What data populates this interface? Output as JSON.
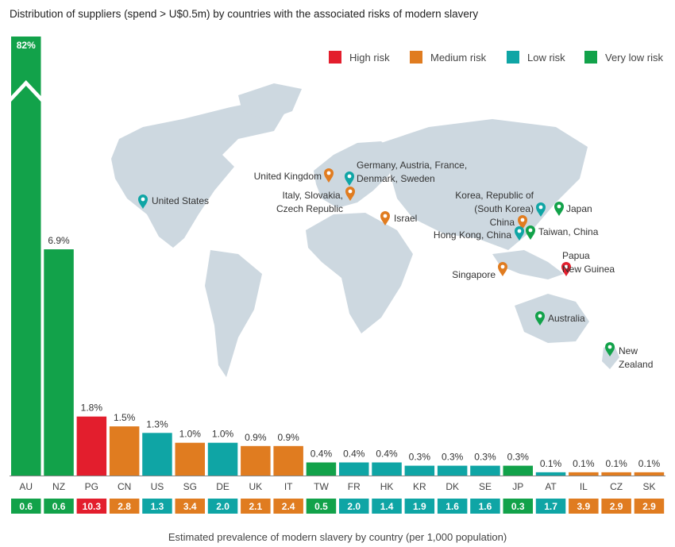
{
  "title": "Distribution of suppliers (spend > U$0.5m) by countries with the associated risks of modern slavery",
  "footer": "Estimated prevalence of modern slavery by country (per 1,000 population)",
  "colors": {
    "high": "#e31e2d",
    "medium": "#e07c20",
    "low": "#0fa5a5",
    "very_low": "#12a24a",
    "land": "#cdd8e0"
  },
  "legend": [
    {
      "key": "high",
      "label": "High risk"
    },
    {
      "key": "medium",
      "label": "Medium risk"
    },
    {
      "key": "low",
      "label": "Low risk"
    },
    {
      "key": "very_low",
      "label": "Very low risk"
    }
  ],
  "map_labels": [
    {
      "text": "United States",
      "risk": "low"
    },
    {
      "text": "United Kingdom",
      "risk": "medium"
    },
    {
      "text": "Germany, Austria, France,",
      "risk": "low"
    },
    {
      "text": "Denmark, Sweden",
      "risk": null
    },
    {
      "text": "Italy, Slovakia,",
      "risk": "medium"
    },
    {
      "text": "Czech Republic",
      "risk": null
    },
    {
      "text": "Israel",
      "risk": "medium"
    },
    {
      "text": "Korea, Republic of",
      "risk": "low"
    },
    {
      "text": "(South Korea)",
      "risk": null
    },
    {
      "text": "Japan",
      "risk": "very_low"
    },
    {
      "text": "China",
      "risk": "medium"
    },
    {
      "text": "Hong Kong, China",
      "risk": "low"
    },
    {
      "text": "Taiwan, China",
      "risk": "very_low"
    },
    {
      "text": "Singapore",
      "risk": "medium"
    },
    {
      "text": "Papua",
      "risk": "high"
    },
    {
      "text": "New Guinea",
      "risk": null
    },
    {
      "text": "Australia",
      "risk": "very_low"
    },
    {
      "text": "New",
      "risk": "very_low"
    },
    {
      "text": "Zealand",
      "risk": null
    }
  ],
  "chart_data": {
    "type": "bar",
    "title": "Distribution of suppliers (spend > U$0.5m) by countries with the associated risks of modern slavery",
    "categories": [
      "AU",
      "NZ",
      "PG",
      "CN",
      "US",
      "SG",
      "DE",
      "UK",
      "IT",
      "TW",
      "FR",
      "HK",
      "KR",
      "DK",
      "SE",
      "JP",
      "AT",
      "IL",
      "CZ",
      "SK"
    ],
    "values": [
      82,
      6.9,
      1.8,
      1.5,
      1.3,
      1.0,
      1.0,
      0.9,
      0.9,
      0.4,
      0.4,
      0.4,
      0.3,
      0.3,
      0.3,
      0.3,
      0.1,
      0.1,
      0.1,
      0.1
    ],
    "value_labels": [
      "82%",
      "6.9%",
      "1.8%",
      "1.5%",
      "1.3%",
      "1.0%",
      "1.0%",
      "0.9%",
      "0.9%",
      "0.4%",
      "0.4%",
      "0.4%",
      "0.3%",
      "0.3%",
      "0.3%",
      "0.3%",
      "0.1%",
      "0.1%",
      "0.1%",
      "0.1%"
    ],
    "risk": [
      "very_low",
      "very_low",
      "high",
      "medium",
      "low",
      "medium",
      "low",
      "medium",
      "medium",
      "very_low",
      "low",
      "low",
      "low",
      "low",
      "low",
      "very_low",
      "low",
      "medium",
      "medium",
      "medium"
    ],
    "prevalence": [
      "0.6",
      "0.6",
      "10.3",
      "2.8",
      "1.3",
      "3.4",
      "2.0",
      "2.1",
      "2.4",
      "0.5",
      "2.0",
      "1.4",
      "1.9",
      "1.6",
      "1.6",
      "0.3",
      "1.7",
      "3.9",
      "2.9",
      "2.9"
    ],
    "axis_break": "AU",
    "legend_position": "top-right"
  }
}
